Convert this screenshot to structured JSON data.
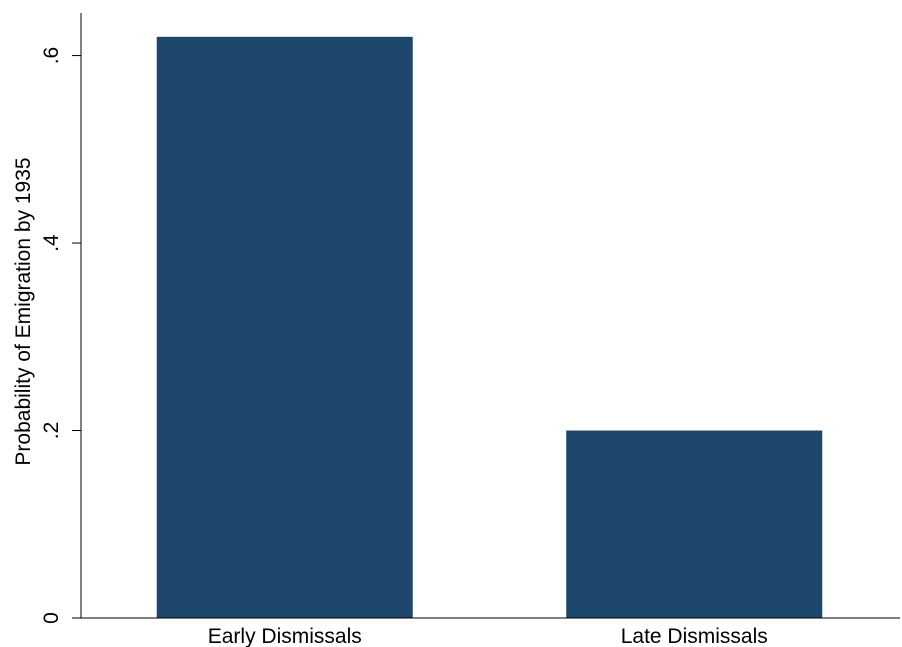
{
  "chart_data": {
    "type": "bar",
    "categories": [
      "Early Dismissals",
      "Late Dismissals"
    ],
    "values": [
      0.62,
      0.2
    ],
    "ylabel": "Probability of Emigration by 1935",
    "xlabel": "",
    "ylim": [
      0,
      0.6454
    ],
    "yticks": [
      0,
      0.2,
      0.4,
      0.6
    ],
    "ytick_labels": [
      "0",
      ".2",
      ".4",
      ".6"
    ],
    "grid": false,
    "bar_color": "#1d466c"
  }
}
